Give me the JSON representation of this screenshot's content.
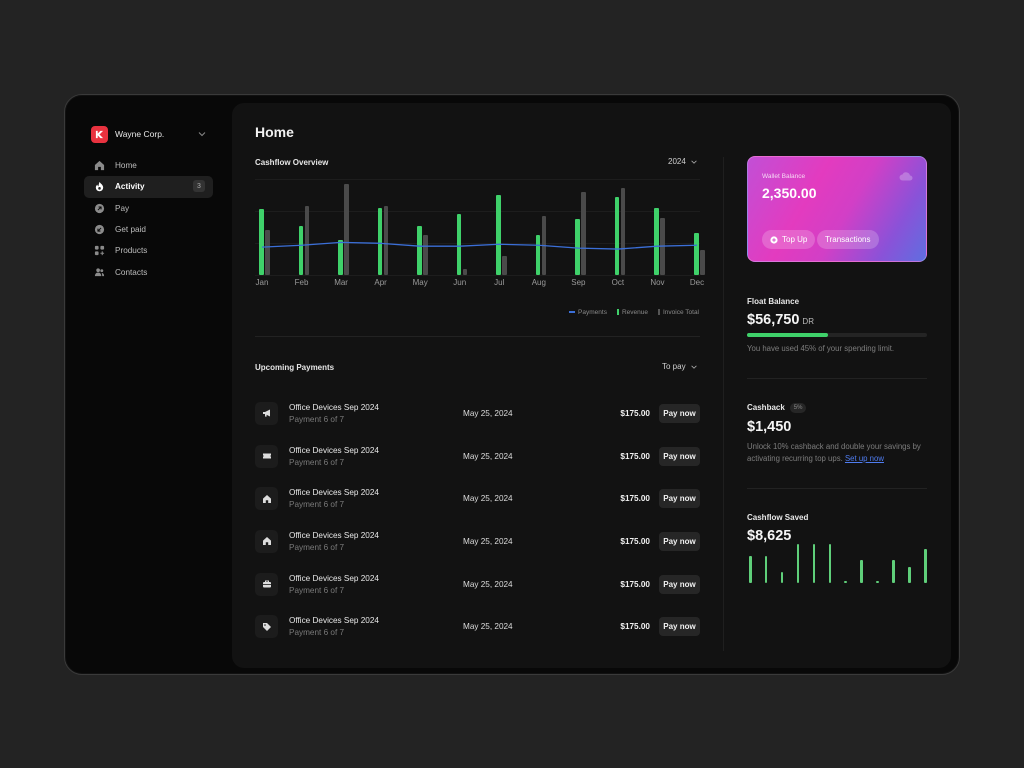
{
  "sidebar": {
    "brand": {
      "name": "Wayne Corp.",
      "logo_color": "#e8323f"
    },
    "items": [
      {
        "label": "Home",
        "icon": "home-icon",
        "active": false
      },
      {
        "label": "Activity",
        "icon": "flame-icon",
        "active": true,
        "badge": "3"
      },
      {
        "label": "Pay",
        "icon": "arrow-up-right-circle-icon",
        "active": false
      },
      {
        "label": "Get paid",
        "icon": "arrow-down-left-circle-icon",
        "active": false
      },
      {
        "label": "Products",
        "icon": "grid-plus-icon",
        "active": false
      },
      {
        "label": "Contacts",
        "icon": "users-icon",
        "active": false
      }
    ]
  },
  "main": {
    "title": "Home",
    "cashflow": {
      "title": "Cashflow Overview",
      "year": "2024",
      "legend": [
        "Payments",
        "Revenue",
        "Invoice Total"
      ]
    },
    "upcoming": {
      "title": "Upcoming Payments",
      "filter": "To pay",
      "rows": [
        {
          "icon": "megaphone-icon",
          "name": "Office Devices Sep 2024",
          "sub": "Payment 6 of 7",
          "date": "May 25, 2024",
          "amount": "$175.00",
          "action": "Pay now"
        },
        {
          "icon": "ticket-icon",
          "name": "Office Devices Sep 2024",
          "sub": "Payment 6 of 7",
          "date": "May 25, 2024",
          "amount": "$175.00",
          "action": "Pay now"
        },
        {
          "icon": "home-icon",
          "name": "Office Devices Sep 2024",
          "sub": "Payment 6 of 7",
          "date": "May 25, 2024",
          "amount": "$175.00",
          "action": "Pay now"
        },
        {
          "icon": "home-icon",
          "name": "Office Devices Sep 2024",
          "sub": "Payment 6 of 7",
          "date": "May 25, 2024",
          "amount": "$175.00",
          "action": "Pay now"
        },
        {
          "icon": "briefcase-icon",
          "name": "Office Devices Sep 2024",
          "sub": "Payment 6 of 7",
          "date": "May 25, 2024",
          "amount": "$175.00",
          "action": "Pay now"
        },
        {
          "icon": "tag-icon",
          "name": "Office Devices Sep 2024",
          "sub": "Payment 6 of 7",
          "date": "May 25, 2024",
          "amount": "$175.00",
          "action": "Pay now"
        }
      ]
    }
  },
  "right": {
    "wallet": {
      "label": "Wallet Balance",
      "amount": "2,350.00",
      "top_up": "Top Up",
      "transactions": "Transactions"
    },
    "float": {
      "title": "Float Balance",
      "amount": "$56,750",
      "suffix": "DR",
      "used_pct": 45,
      "note": "You have used 45% of your spending limit."
    },
    "cashback": {
      "title": "Cashback",
      "badge": "5%",
      "amount": "$1,450",
      "note": "Unlock 10% cashback and double your savings by activating recurring top ups.",
      "link": "Set up now"
    },
    "saved": {
      "title": "Cashflow Saved",
      "amount": "$8,625",
      "bars": [
        70,
        70,
        28,
        100,
        100,
        100,
        5,
        60,
        5,
        60,
        40,
        88
      ]
    }
  },
  "colors": {
    "revenue": "#3fd16a",
    "invoice": "#4a4a4a",
    "payments": "#3b6fd8",
    "link": "#4f7cf0"
  },
  "chart_data": {
    "type": "bar",
    "title": "Cashflow Overview",
    "categories": [
      "Jan",
      "Feb",
      "Mar",
      "Apr",
      "May",
      "Jun",
      "Jul",
      "Aug",
      "Sep",
      "Oct",
      "Nov",
      "Dec"
    ],
    "series": [
      {
        "name": "Revenue",
        "type": "bar",
        "values": [
          69,
          51,
          36,
          70,
          51,
          64,
          83,
          42,
          58,
          81,
          70,
          44
        ]
      },
      {
        "name": "Invoice Total",
        "type": "bar",
        "values": [
          47,
          72,
          95,
          72,
          42,
          6,
          20,
          61,
          86,
          91,
          59,
          26
        ]
      },
      {
        "name": "Payments",
        "type": "line",
        "values": [
          29,
          31,
          34,
          33,
          30,
          30,
          32,
          31,
          28,
          27,
          30,
          31
        ]
      }
    ],
    "xlabel": "",
    "ylabel": "",
    "ylim": [
      0,
      100
    ],
    "grid": true,
    "legend_position": "bottom-right"
  }
}
